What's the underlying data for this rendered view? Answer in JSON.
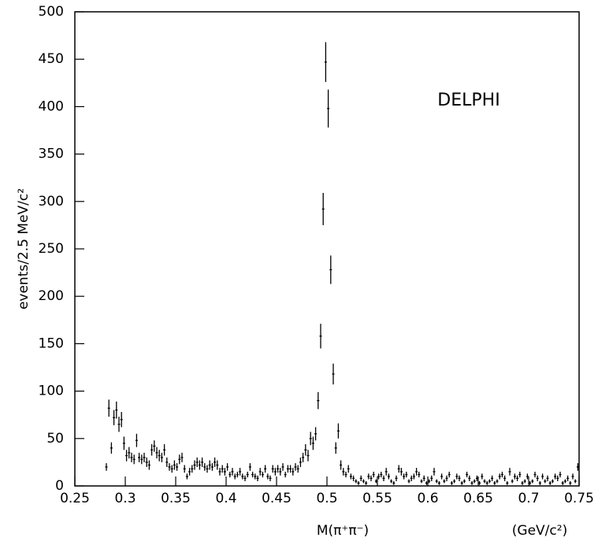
{
  "chart_data": {
    "type": "scatter",
    "y_label": "events/2.5 MeV/c²",
    "x_label": "M(π⁺π⁻)",
    "x_unit": "(GeV/c²)",
    "annotation": "DELPHI",
    "color": "#000000",
    "xlim": [
      0.25,
      0.75
    ],
    "ylim": [
      0,
      500
    ],
    "xticks": [
      0.25,
      0.3,
      0.35,
      0.4,
      0.45,
      0.5,
      0.55,
      0.6,
      0.65,
      0.7,
      0.75
    ],
    "yticks": [
      0,
      50,
      100,
      150,
      200,
      250,
      300,
      350,
      400,
      450,
      500
    ],
    "x": [
      0.28125,
      0.28375,
      0.28625,
      0.28875,
      0.29125,
      0.29375,
      0.29625,
      0.29875,
      0.30125,
      0.30375,
      0.30625,
      0.30875,
      0.31125,
      0.31375,
      0.31625,
      0.31875,
      0.32125,
      0.32375,
      0.32625,
      0.32875,
      0.33125,
      0.33375,
      0.33625,
      0.33875,
      0.34125,
      0.34375,
      0.34625,
      0.34875,
      0.35125,
      0.35375,
      0.35625,
      0.35875,
      0.36125,
      0.36375,
      0.36625,
      0.36875,
      0.37125,
      0.37375,
      0.37625,
      0.37875,
      0.38125,
      0.38375,
      0.38625,
      0.38875,
      0.39125,
      0.39375,
      0.39625,
      0.39875,
      0.40125,
      0.40375,
      0.40625,
      0.40875,
      0.41125,
      0.41375,
      0.41625,
      0.41875,
      0.42125,
      0.42375,
      0.42625,
      0.42875,
      0.43125,
      0.43375,
      0.43625,
      0.43875,
      0.44125,
      0.44375,
      0.44625,
      0.44875,
      0.45125,
      0.45375,
      0.45625,
      0.45875,
      0.46125,
      0.46375,
      0.46625,
      0.46875,
      0.47125,
      0.47375,
      0.47625,
      0.47875,
      0.48125,
      0.48375,
      0.48625,
      0.48875,
      0.49125,
      0.49375,
      0.49625,
      0.49875,
      0.50125,
      0.50375,
      0.50625,
      0.50875,
      0.51125,
      0.51375,
      0.51625,
      0.51875,
      0.52125,
      0.52375,
      0.52625,
      0.52875,
      0.53125,
      0.53375,
      0.53625,
      0.53875,
      0.54125,
      0.54375,
      0.54625,
      0.54875,
      0.55125,
      0.55375,
      0.55625,
      0.55875,
      0.56125,
      0.56375,
      0.56625,
      0.56875,
      0.57125,
      0.57375,
      0.57625,
      0.57875,
      0.58125,
      0.58375,
      0.58625,
      0.58875,
      0.59125,
      0.59375,
      0.59625,
      0.59875,
      0.60125,
      0.60375,
      0.60625,
      0.60875,
      0.61125,
      0.61375,
      0.61625,
      0.61875,
      0.62125,
      0.62375,
      0.62625,
      0.62875,
      0.63125,
      0.63375,
      0.63625,
      0.63875,
      0.64125,
      0.64375,
      0.64625,
      0.64875,
      0.65125,
      0.65375,
      0.65625,
      0.65875,
      0.66125,
      0.66375,
      0.66625,
      0.66875,
      0.67125,
      0.67375,
      0.67625,
      0.67875,
      0.68125,
      0.68375,
      0.68625,
      0.68875,
      0.69125,
      0.69375,
      0.69625,
      0.69875,
      0.70125,
      0.70375,
      0.70625,
      0.70875,
      0.71125,
      0.71375,
      0.71625,
      0.71875,
      0.72125,
      0.72375,
      0.72625,
      0.72875,
      0.73125,
      0.73375,
      0.73625,
      0.73875,
      0.74125,
      0.74375,
      0.74625,
      0.74875
    ],
    "values": [
      20,
      82,
      40,
      72,
      80,
      65,
      70,
      45,
      32,
      35,
      30,
      28,
      48,
      30,
      28,
      30,
      25,
      22,
      38,
      42,
      35,
      32,
      30,
      38,
      25,
      20,
      18,
      22,
      20,
      28,
      30,
      18,
      10,
      15,
      18,
      22,
      25,
      22,
      25,
      20,
      18,
      22,
      20,
      25,
      22,
      15,
      18,
      15,
      20,
      12,
      15,
      10,
      12,
      15,
      10,
      8,
      12,
      20,
      12,
      10,
      8,
      15,
      12,
      18,
      10,
      8,
      18,
      15,
      18,
      15,
      20,
      12,
      18,
      18,
      15,
      20,
      18,
      25,
      30,
      38,
      32,
      50,
      45,
      55,
      90,
      158,
      292,
      447,
      398,
      228,
      118,
      40,
      58,
      22,
      15,
      12,
      18,
      10,
      8,
      5,
      3,
      8,
      5,
      3,
      10,
      8,
      12,
      5,
      10,
      12,
      8,
      15,
      10,
      5,
      3,
      8,
      18,
      15,
      10,
      12,
      5,
      8,
      10,
      15,
      12,
      5,
      8,
      3,
      5,
      8,
      15,
      5,
      3,
      10,
      5,
      8,
      12,
      3,
      5,
      10,
      8,
      3,
      5,
      12,
      8,
      3,
      5,
      8,
      3,
      10,
      5,
      3,
      5,
      8,
      3,
      5,
      10,
      12,
      8,
      3,
      15,
      5,
      10,
      8,
      12,
      3,
      5,
      10,
      3,
      5,
      12,
      8,
      3,
      10,
      5,
      8,
      3,
      5,
      10,
      8,
      12,
      3,
      5,
      8,
      3,
      10,
      5,
      20
    ],
    "errors": [
      4,
      9,
      6,
      8,
      9,
      8,
      8,
      7,
      6,
      6,
      5,
      5,
      7,
      5,
      5,
      5,
      5,
      5,
      6,
      6,
      6,
      6,
      5,
      6,
      5,
      4,
      4,
      5,
      4,
      5,
      5,
      4,
      3,
      4,
      4,
      5,
      5,
      5,
      5,
      4,
      4,
      5,
      4,
      5,
      5,
      4,
      4,
      4,
      4,
      3,
      4,
      3,
      3,
      4,
      3,
      3,
      3,
      4,
      3,
      3,
      3,
      4,
      3,
      4,
      3,
      3,
      4,
      4,
      4,
      4,
      4,
      3,
      4,
      4,
      4,
      4,
      4,
      5,
      5,
      6,
      6,
      7,
      7,
      7,
      9,
      13,
      17,
      21,
      20,
      15,
      11,
      6,
      8,
      5,
      4,
      3,
      4,
      3,
      3,
      2,
      2,
      3,
      2,
      2,
      3,
      3,
      3,
      2,
      3,
      3,
      3,
      4,
      3,
      2,
      2,
      3,
      4,
      4,
      3,
      3,
      2,
      3,
      3,
      4,
      3,
      2,
      3,
      2,
      2,
      3,
      4,
      2,
      2,
      3,
      2,
      3,
      3,
      2,
      2,
      3,
      3,
      2,
      2,
      3,
      3,
      2,
      2,
      3,
      2,
      3,
      2,
      2,
      2,
      3,
      2,
      2,
      3,
      3,
      3,
      2,
      4,
      2,
      3,
      3,
      3,
      2,
      2,
      3,
      2,
      2,
      3,
      3,
      2,
      3,
      2,
      3,
      2,
      2,
      3,
      3,
      3,
      2,
      2,
      3,
      2,
      3,
      2,
      4
    ]
  }
}
